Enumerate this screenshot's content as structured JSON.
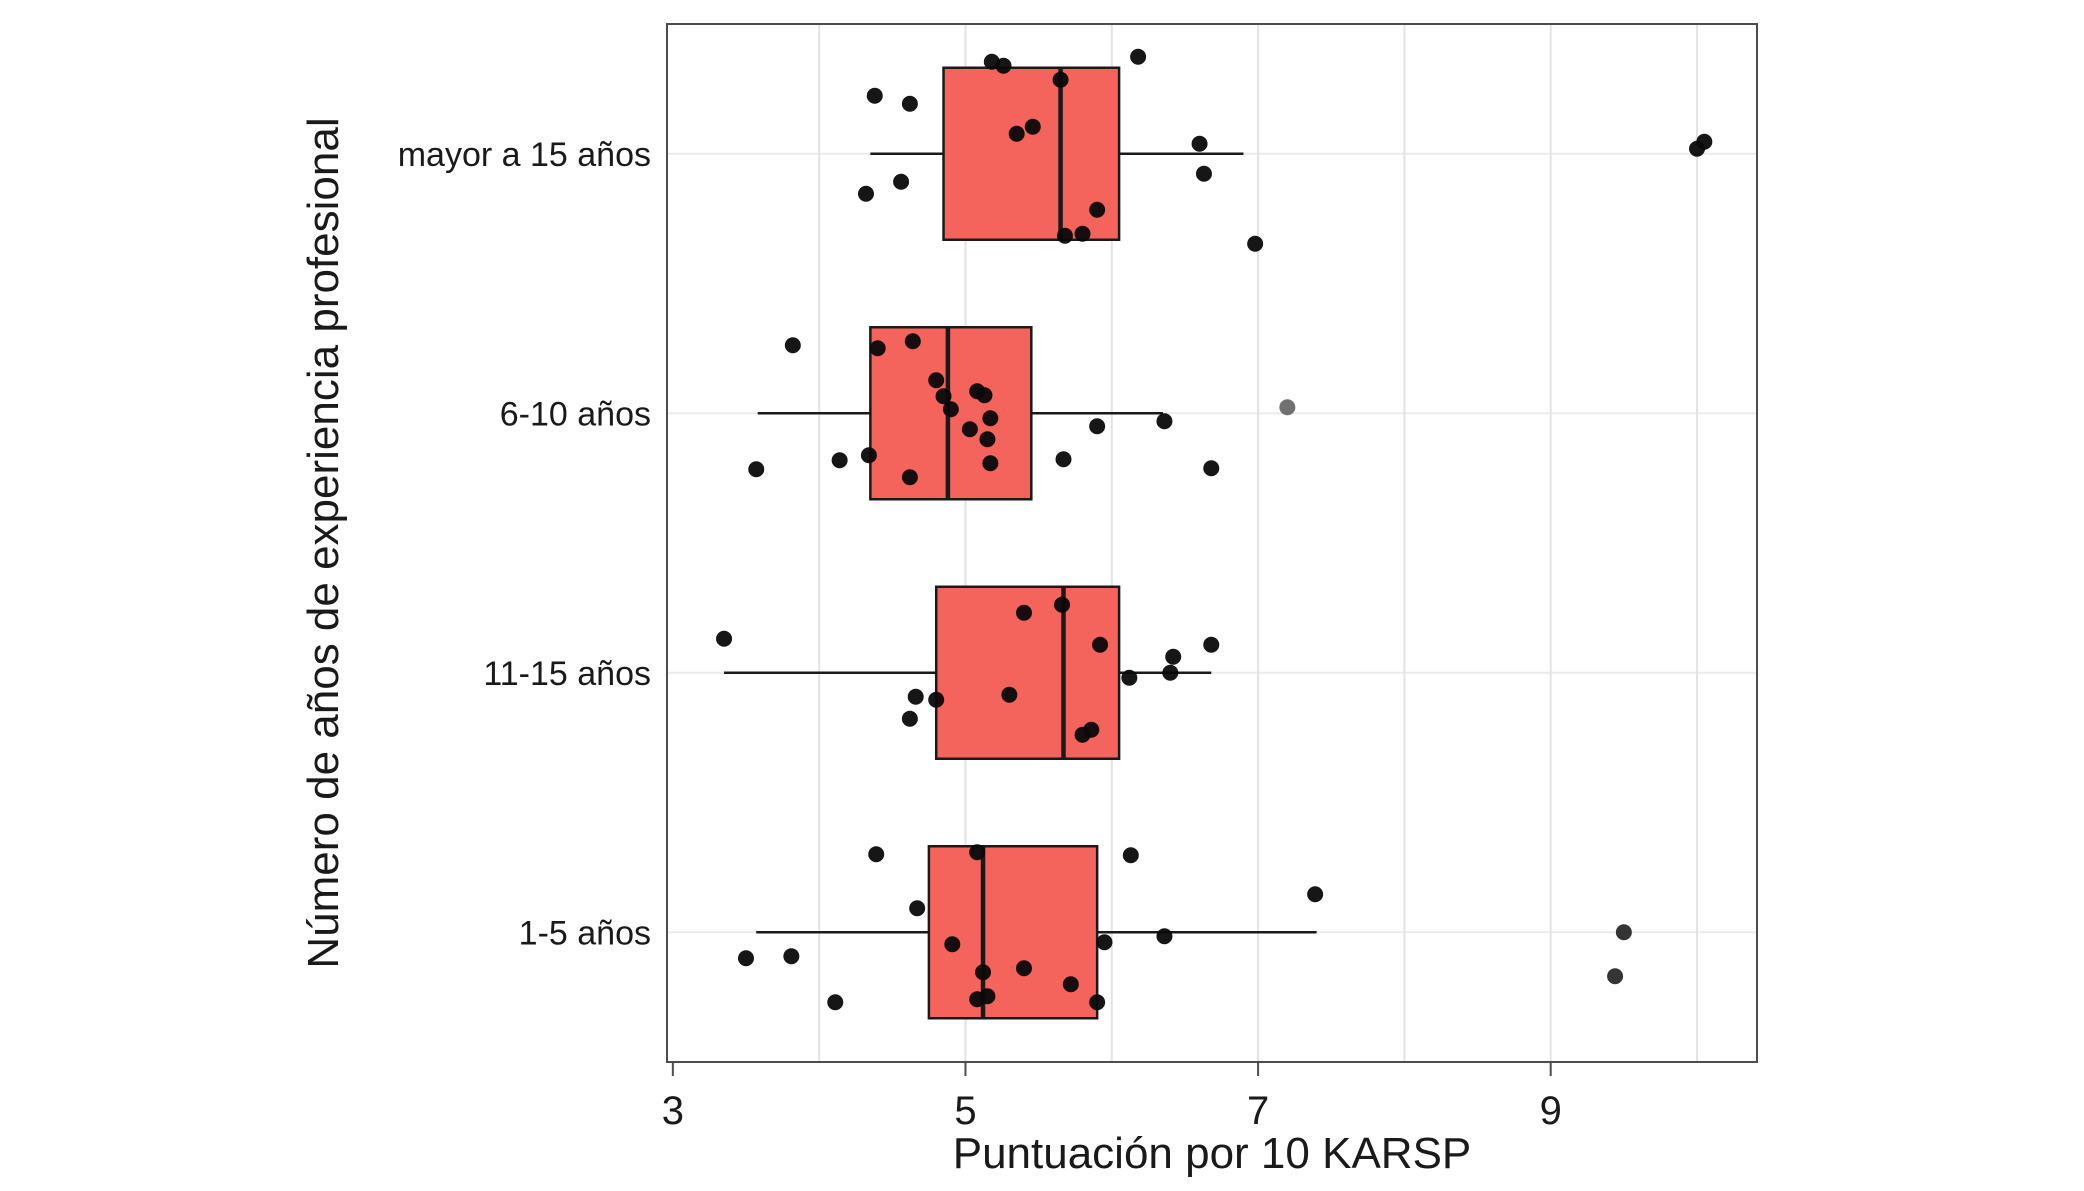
{
  "figure": {
    "background": "#FFFFFF"
  },
  "chart_data": {
    "type": "boxplot",
    "orientation": "horizontal",
    "overlay": "jittered points",
    "title": "",
    "xlabel": "Puntuación por 10 KARSP",
    "ylabel": "Número de años de experiencia profesional",
    "x_ticks": [
      3,
      5,
      7,
      9
    ],
    "x_gridlines": [
      4,
      5,
      6,
      7,
      8,
      9,
      10
    ],
    "xlim": [
      2.96,
      10.41
    ],
    "grid": "on",
    "legend": "none",
    "box_fill": "#F4645D",
    "box_stroke": "#1A1A1A",
    "median_color": "#1A1A1A",
    "whisker_color": "#1A1A1A",
    "point_color": "#0A0A0A",
    "gridline_color_v": "#E3E3E3",
    "gridline_color_h": "#EBEBEB",
    "panel_border_color": "#4D4D4D",
    "categories": [
      "mayor a 15 años",
      "6-10 años",
      "11-15 años",
      "1-5 años"
    ],
    "groups": [
      {
        "label": "mayor a 15 años",
        "whisker_low": 4.35,
        "q1": 4.85,
        "median": 5.65,
        "q3": 6.05,
        "whisker_high": 6.9,
        "points": [
          [
            5.18,
            -0.92
          ],
          [
            5.26,
            -0.88
          ],
          [
            6.18,
            -0.97
          ],
          [
            4.38,
            -0.58
          ],
          [
            4.62,
            -0.5
          ],
          [
            5.65,
            -0.74
          ],
          [
            5.35,
            -0.2
          ],
          [
            5.46,
            -0.27
          ],
          [
            6.6,
            -0.1
          ],
          [
            10.0,
            -0.05
          ],
          [
            10.05,
            -0.12
          ],
          [
            4.32,
            0.4
          ],
          [
            4.56,
            0.28
          ],
          [
            6.63,
            0.2
          ],
          [
            5.9,
            0.56
          ],
          [
            5.68,
            0.82
          ],
          [
            5.8,
            0.8
          ],
          [
            6.98,
            0.9
          ]
        ]
      },
      {
        "label": "6-10 años",
        "whisker_low": 3.58,
        "q1": 4.35,
        "median": 4.88,
        "q3": 5.45,
        "whisker_high": 6.35,
        "points": [
          [
            3.82,
            -0.68
          ],
          [
            4.4,
            -0.65
          ],
          [
            4.64,
            -0.72
          ],
          [
            4.8,
            -0.33
          ],
          [
            4.85,
            -0.17
          ],
          [
            4.9,
            -0.04
          ],
          [
            5.08,
            -0.22
          ],
          [
            5.13,
            -0.18
          ],
          [
            5.17,
            0.05
          ],
          [
            5.15,
            0.26
          ],
          [
            5.03,
            0.16
          ],
          [
            5.9,
            0.13
          ],
          [
            6.36,
            0.08
          ],
          [
            7.2,
            -0.06,
            "#696969"
          ],
          [
            4.14,
            0.47
          ],
          [
            4.34,
            0.42
          ],
          [
            5.17,
            0.5
          ],
          [
            5.67,
            0.46
          ],
          [
            4.62,
            0.64
          ],
          [
            3.57,
            0.56
          ],
          [
            6.68,
            0.55
          ]
        ]
      },
      {
        "label": "11-15 años",
        "whisker_low": 3.35,
        "q1": 4.8,
        "median": 5.67,
        "q3": 6.05,
        "whisker_high": 6.68,
        "points": [
          [
            3.35,
            -0.34
          ],
          [
            5.4,
            -0.6
          ],
          [
            5.66,
            -0.68
          ],
          [
            5.92,
            -0.28
          ],
          [
            6.68,
            -0.28
          ],
          [
            6.42,
            -0.16
          ],
          [
            6.12,
            0.05
          ],
          [
            6.4,
            0.0
          ],
          [
            5.3,
            0.22
          ],
          [
            4.8,
            0.27
          ],
          [
            4.66,
            0.24
          ],
          [
            4.62,
            0.46
          ],
          [
            5.86,
            0.57
          ],
          [
            5.8,
            0.62
          ]
        ]
      },
      {
        "label": "1-5 años",
        "whisker_low": 3.57,
        "q1": 4.75,
        "median": 5.12,
        "q3": 5.9,
        "whisker_high": 7.4,
        "points": [
          [
            4.39,
            -0.78
          ],
          [
            5.08,
            -0.8
          ],
          [
            6.13,
            -0.77
          ],
          [
            7.39,
            -0.38
          ],
          [
            4.67,
            -0.24
          ],
          [
            4.91,
            0.12
          ],
          [
            5.95,
            0.1
          ],
          [
            6.36,
            0.04
          ],
          [
            3.5,
            0.26
          ],
          [
            3.81,
            0.24
          ],
          [
            5.12,
            0.4
          ],
          [
            5.4,
            0.36
          ],
          [
            5.72,
            0.52
          ],
          [
            4.11,
            0.7
          ],
          [
            5.08,
            0.67
          ],
          [
            5.15,
            0.64
          ],
          [
            5.9,
            0.7
          ],
          [
            9.5,
            0.0,
            "#2A2A2A"
          ],
          [
            9.44,
            0.44,
            "#2A2A2A"
          ]
        ]
      }
    ]
  }
}
